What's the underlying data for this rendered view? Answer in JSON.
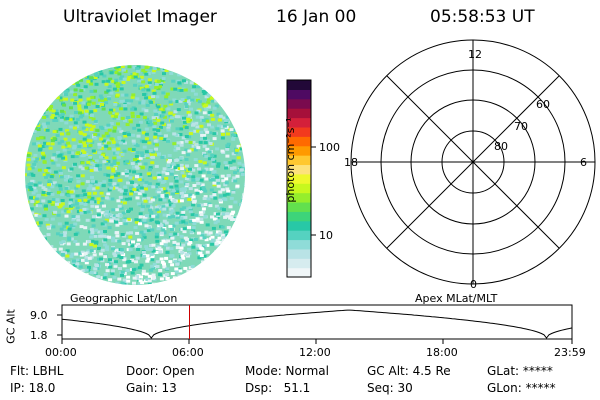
{
  "header": {
    "instrument": "Ultraviolet Imager",
    "date": "16 Jan 00",
    "time": "05:58:53 UT"
  },
  "colorbar": {
    "unit_label": "photon cm⁻²s⁻¹",
    "tick_labels": [
      "100",
      "10"
    ],
    "colors": [
      "#f0f6f8",
      "#d6ecef",
      "#b9e3e6",
      "#8fdcd8",
      "#55d2c0",
      "#28c8a6",
      "#3dd47a",
      "#62e04e",
      "#95ee2c",
      "#c7f81e",
      "#eef82c",
      "#fde27c",
      "#ffc830",
      "#ff9a00",
      "#ff6a00",
      "#f23a1e",
      "#d4203a",
      "#a6103a",
      "#7a0a4e",
      "#4e0a62",
      "#220838"
    ]
  },
  "polar_plot": {
    "mlt_labels": {
      "top": "12",
      "left": "18",
      "right": "6",
      "bottom": "0"
    },
    "lat_labels": [
      "60",
      "70",
      "80"
    ]
  },
  "timeline": {
    "left_label": "Geographic Lat/Lon",
    "right_label": "Apex MLat/MLT",
    "axis_label": "GC Alt",
    "y_ticks": [
      "9.0",
      "1.8"
    ],
    "x_ticks": [
      "00:00",
      "06:00",
      "12:00",
      "18:00",
      "23:59"
    ],
    "current_marker_hour": 6.0,
    "marker_color": "#cc0000"
  },
  "info": {
    "flt": "Flt: LBHL",
    "ip": "IP: 18.0",
    "door": "Door: Open",
    "gain": "Gain: 13",
    "mode": "Mode: Normal",
    "dsp": "Dsp:   51.1",
    "gcalt": "GC Alt: 4.5 Re",
    "seq": "Seq: 30",
    "glat": "GLat: *****",
    "glon": "GLon: *****"
  }
}
